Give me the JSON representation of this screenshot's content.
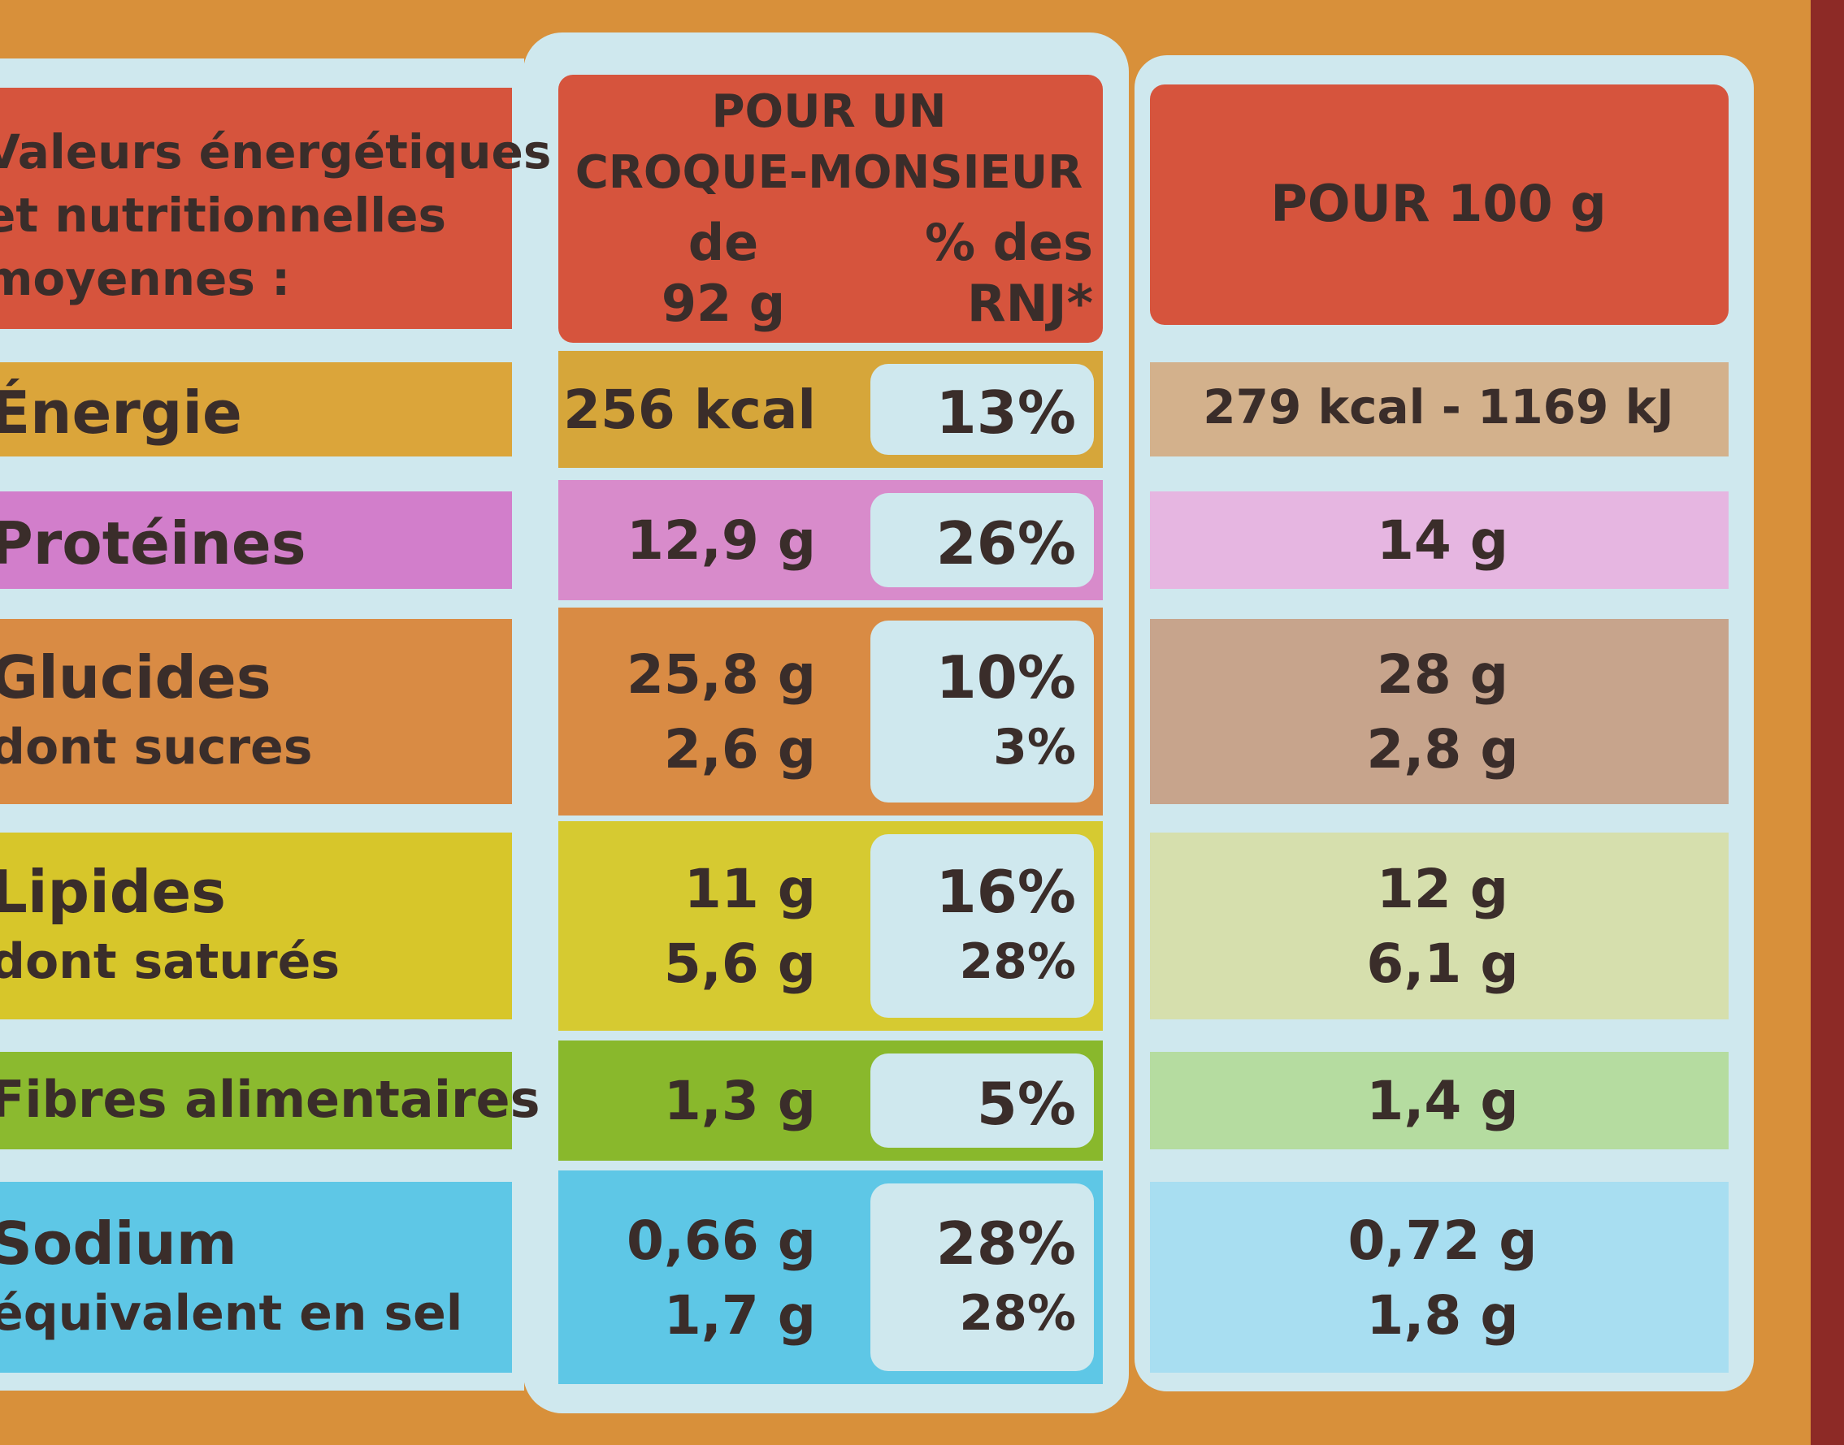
{
  "header": {
    "label": [
      "Valeurs énergétiques",
      "et nutritionnelles",
      "moyennes :"
    ],
    "serving_title": [
      "POUR UN",
      "CROQUE-MONSIEUR"
    ],
    "serving_amount": [
      "de",
      "92 g"
    ],
    "rnj": [
      "% des",
      "RNJ*"
    ],
    "per100": "POUR 100 g"
  },
  "rows": [
    {
      "label": [
        "Énergie"
      ],
      "serving": [
        "256 kcal"
      ],
      "rnj": [
        "13%"
      ],
      "per100": [
        "279 kcal - 1169 kJ"
      ]
    },
    {
      "label": [
        "Protéines"
      ],
      "serving": [
        "12,9 g"
      ],
      "rnj": [
        "26%"
      ],
      "per100": [
        "14 g"
      ]
    },
    {
      "label": [
        "Glucides",
        "dont sucres"
      ],
      "serving": [
        "25,8 g",
        "2,6 g"
      ],
      "rnj": [
        "10%",
        "3%"
      ],
      "per100": [
        "28 g",
        "2,8 g"
      ]
    },
    {
      "label": [
        "Lipides",
        "dont saturés"
      ],
      "serving": [
        "11 g",
        "5,6 g"
      ],
      "rnj": [
        "16%",
        "28%"
      ],
      "per100": [
        "12 g",
        "6,1 g"
      ]
    },
    {
      "label": [
        "Fibres alimentaires"
      ],
      "serving": [
        "1,3 g"
      ],
      "rnj": [
        "5%"
      ],
      "per100": [
        "1,4 g"
      ]
    },
    {
      "label": [
        "Sodium",
        "équivalent en sel"
      ],
      "serving": [
        "0,66 g",
        "1,7 g"
      ],
      "rnj": [
        "28%",
        "28%"
      ],
      "per100": [
        "0,72 g",
        "1,8 g"
      ]
    }
  ]
}
